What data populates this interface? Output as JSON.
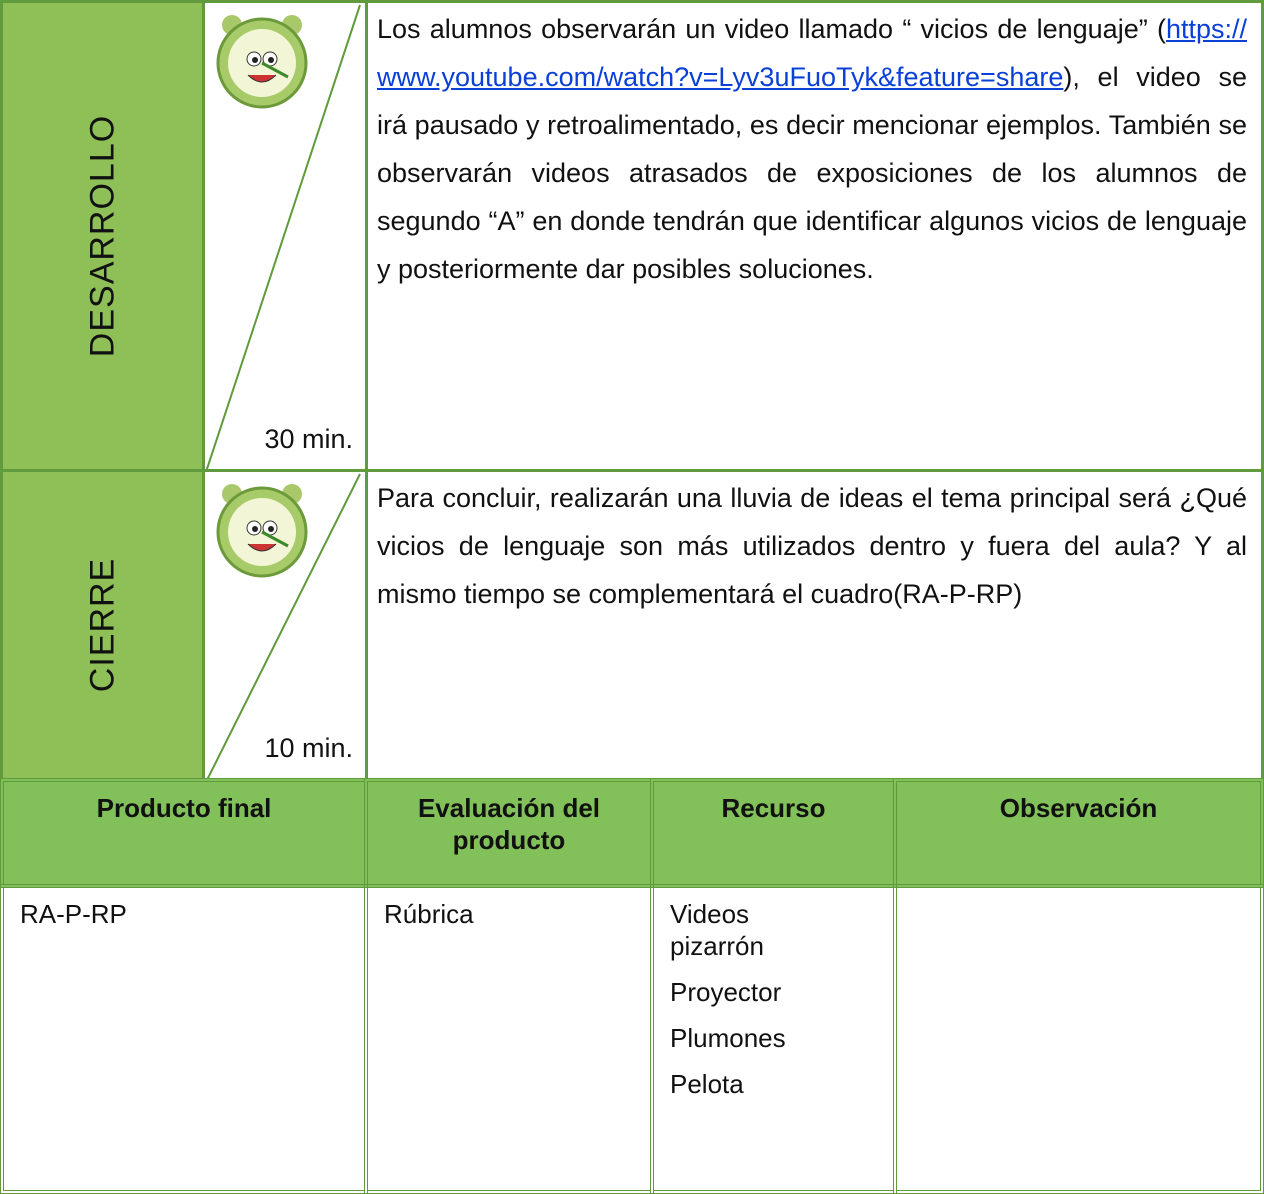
{
  "rows": [
    {
      "phase": "DESARROLLO",
      "time": "30 min.",
      "text_before": "Los alumnos observarán  un video llamado “ vicios de lenguaje” (",
      "link": "https://www.youtube.com/watch?v=Lyv3uFuoTyk&feature=share",
      "text_after": "), el video se irá pausado y retroalimentado, es decir mencionar ejemplos. También se observarán videos atrasados de exposiciones de los alumnos de segundo “A” en donde tendrán que identificar algunos vicios de lenguaje y posteriormente dar posibles soluciones."
    },
    {
      "phase": "CIERRE",
      "time": "10 min.",
      "text": "Para concluir, realizarán una lluvia de ideas el tema principal será ¿Qué vicios de lenguaje son más utilizados dentro y fuera del aula? Y al mismo tiempo se complementará el cuadro(RA-P-RP)"
    }
  ],
  "summary": {
    "headers": [
      "Producto final",
      "Evaluación del producto",
      "Recurso",
      "Observación"
    ],
    "product": "RA-P-RP",
    "evaluation": "Rúbrica",
    "resources": [
      "Videos pizarrón",
      "Proyector",
      "Plumones",
      "Pelota"
    ]
  }
}
